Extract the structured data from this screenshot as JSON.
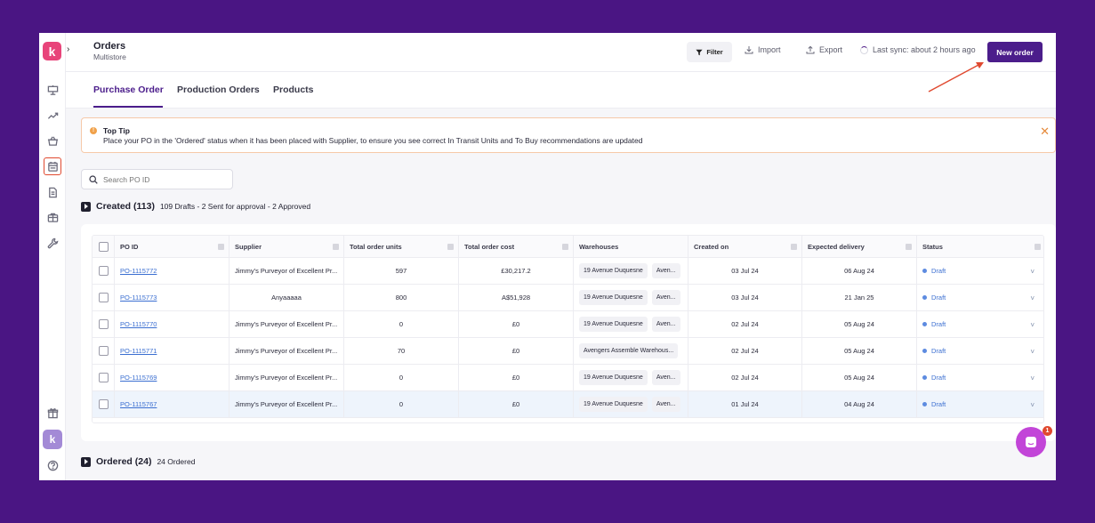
{
  "header": {
    "title": "Orders",
    "subtitle": "Multistore",
    "filter_label": "Filter",
    "import_label": "Import",
    "export_label": "Export",
    "sync_label": "Last sync: about 2 hours ago",
    "new_order_label": "New order"
  },
  "sidebar": {
    "logo": "k",
    "avatar": "k",
    "icons": [
      "presentation-icon",
      "trend-icon",
      "basket-icon",
      "calendar-icon",
      "document-icon",
      "box-icon",
      "wrench-icon",
      "gift-icon",
      "help-icon"
    ],
    "active_icon": "calendar-icon"
  },
  "tabs": [
    {
      "label": "Purchase Order",
      "active": true
    },
    {
      "label": "Production Orders",
      "active": false
    },
    {
      "label": "Products",
      "active": false
    }
  ],
  "tip": {
    "title": "Top Tip",
    "text": "Place your PO in the 'Ordered' status when it has been placed with Supplier, to ensure you see correct In Transit Units and To Buy recommendations are updated"
  },
  "search": {
    "placeholder": "Search PO ID"
  },
  "created_section": {
    "title": "Created (113)",
    "summary": "109 Drafts - 2 Sent for approval - 2 Approved"
  },
  "ordered_section": {
    "title": "Ordered (24)",
    "summary": "24 Ordered"
  },
  "table": {
    "columns": [
      "PO ID",
      "Supplier",
      "Total order units",
      "Total order cost",
      "Warehouses",
      "Created on",
      "Expected delivery",
      "Status"
    ],
    "rows": [
      {
        "po_id": "PO-1115772",
        "supplier": "Jimmy's Purveyor of Excellent Pr...",
        "units": "597",
        "cost": "£30,217.2",
        "warehouses": [
          "19 Avenue Duquesne",
          "Aven..."
        ],
        "created": "03 Jul 24",
        "delivery": "06 Aug 24",
        "status": "Draft"
      },
      {
        "po_id": "PO-1115773",
        "supplier": "Anyaaaaa",
        "units": "800",
        "cost": "A$51,928",
        "warehouses": [
          "19 Avenue Duquesne",
          "Aven..."
        ],
        "created": "03 Jul 24",
        "delivery": "21 Jan 25",
        "status": "Draft"
      },
      {
        "po_id": "PO-1115770",
        "supplier": "Jimmy's Purveyor of Excellent Pr...",
        "units": "0",
        "cost": "£0",
        "warehouses": [
          "19 Avenue Duquesne",
          "Aven..."
        ],
        "created": "02 Jul 24",
        "delivery": "05 Aug 24",
        "status": "Draft"
      },
      {
        "po_id": "PO-1115771",
        "supplier": "Jimmy's Purveyor of Excellent Pr...",
        "units": "70",
        "cost": "£0",
        "warehouses": [
          "Avengers Assemble Warehous..."
        ],
        "created": "02 Jul 24",
        "delivery": "05 Aug 24",
        "status": "Draft"
      },
      {
        "po_id": "PO-1115769",
        "supplier": "Jimmy's Purveyor of Excellent Pr...",
        "units": "0",
        "cost": "£0",
        "warehouses": [
          "19 Avenue Duquesne",
          "Aven..."
        ],
        "created": "02 Jul 24",
        "delivery": "05 Aug 24",
        "status": "Draft"
      },
      {
        "po_id": "PO-1115767",
        "supplier": "Jimmy's Purveyor of Excellent Pr...",
        "units": "0",
        "cost": "£0",
        "warehouses": [
          "19 Avenue Duquesne",
          "Aven..."
        ],
        "created": "01 Jul 24",
        "delivery": "04 Aug 24",
        "status": "Draft"
      }
    ],
    "highlighted_row_index": 5
  },
  "chat": {
    "badge_count": "1"
  },
  "colors": {
    "background": "#4a1583",
    "brand_primary": "#4b1d8b",
    "logo": "#e8447a",
    "status_draft": "#3b6fd1",
    "tip_border": "#f6c9a9",
    "annotation_arrow": "#e0492f",
    "chat": "#c245d8"
  }
}
